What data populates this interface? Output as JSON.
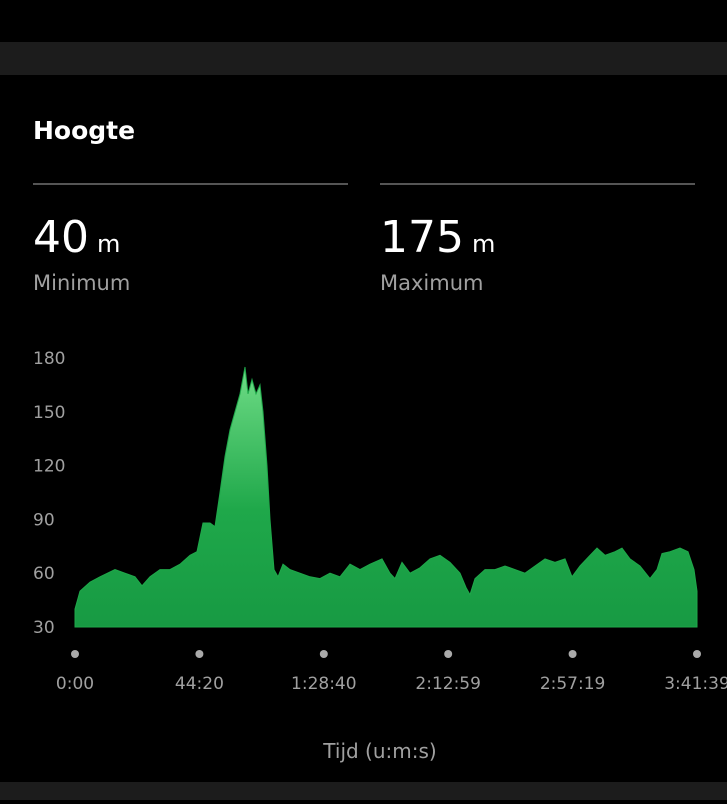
{
  "header": {
    "title": "Hoogte"
  },
  "stats": [
    {
      "value": 40,
      "unit": "m",
      "label": "Minimum"
    },
    {
      "value": 175,
      "unit": "m",
      "label": "Maximum"
    }
  ],
  "chart_data": {
    "type": "area",
    "x_label": "Tijd (u:m:s)",
    "color": "#1fa84a",
    "x": [
      0,
      107,
      321,
      535,
      855,
      1069,
      1283,
      1432,
      1604,
      1817,
      2031,
      2245,
      2459,
      2608,
      2737,
      2886,
      2993,
      3100,
      3207,
      3314,
      3421,
      3528,
      3635,
      3699,
      3784,
      3870,
      3955,
      4019,
      4105,
      4169,
      4255,
      4340,
      4447,
      4597,
      4811,
      5024,
      5238,
      5452,
      5666,
      5880,
      6093,
      6307,
      6564,
      6735,
      6842,
      6991,
      7162,
      7376,
      7590,
      7804,
      8018,
      8231,
      8360,
      8445,
      8552,
      8766,
      8980,
      9193,
      9407,
      9621,
      9835,
      10049,
      10262,
      10476,
      10626,
      10797,
      11011,
      11161,
      11331,
      11545,
      11695,
      11866,
      12080,
      12294,
      12443,
      12550,
      12721,
      12935,
      13106,
      13234,
      13299
    ],
    "values": [
      40,
      50,
      55,
      58,
      62,
      60,
      58,
      53,
      58,
      62,
      62,
      65,
      70,
      72,
      88,
      88,
      86,
      105,
      125,
      140,
      150,
      160,
      175,
      160,
      168,
      160,
      165,
      150,
      120,
      90,
      62,
      58,
      65,
      62,
      60,
      58,
      57,
      60,
      58,
      65,
      62,
      65,
      68,
      60,
      57,
      66,
      60,
      63,
      68,
      70,
      66,
      60,
      52,
      48,
      57,
      62,
      62,
      64,
      62,
      60,
      64,
      68,
      66,
      68,
      58,
      64,
      70,
      74,
      70,
      72,
      74,
      68,
      64,
      57,
      62,
      71,
      72,
      74,
      72,
      62,
      50
    ],
    "xlim": [
      0,
      13299
    ],
    "xticks": [
      {
        "value": 0,
        "label": "0:00"
      },
      {
        "value": 2660,
        "label": "44:20"
      },
      {
        "value": 5320,
        "label": "1:28:40"
      },
      {
        "value": 7979,
        "label": "2:12:59"
      },
      {
        "value": 10639,
        "label": "2:57:19"
      },
      {
        "value": 13299,
        "label": "3:41:39"
      }
    ],
    "ylim": [
      30,
      180
    ],
    "yticks": [
      30,
      60,
      90,
      120,
      150,
      180
    ],
    "grid": false
  }
}
